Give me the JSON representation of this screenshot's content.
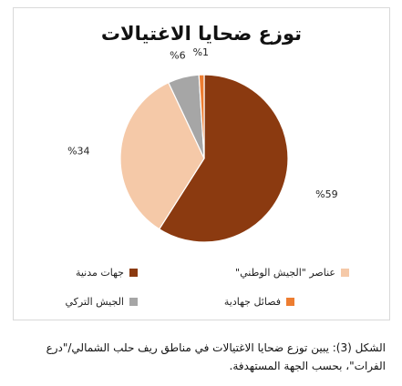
{
  "chart_data": {
    "type": "pie",
    "title": "توزع ضحايا الاغتيالات",
    "categories": [
      "جهات مدنية",
      "عناصر \"الجيش الوطني\"",
      "الجيش التركي",
      "فصائل جهادية"
    ],
    "values": [
      59,
      34,
      6,
      1
    ],
    "data_labels": [
      "%59",
      "%34",
      "%6",
      "%1"
    ],
    "colors": [
      "#8b3a10",
      "#f5c9a8",
      "#a6a6a6",
      "#ed7d31"
    ],
    "legend_position": "bottom"
  },
  "caption": "الشكل (3): يبين توزع ضحايا الاغتيالات في مناطق ريف حلب الشمالي/\"درع الفرات\"، بحسب الجهة المستهدفة."
}
